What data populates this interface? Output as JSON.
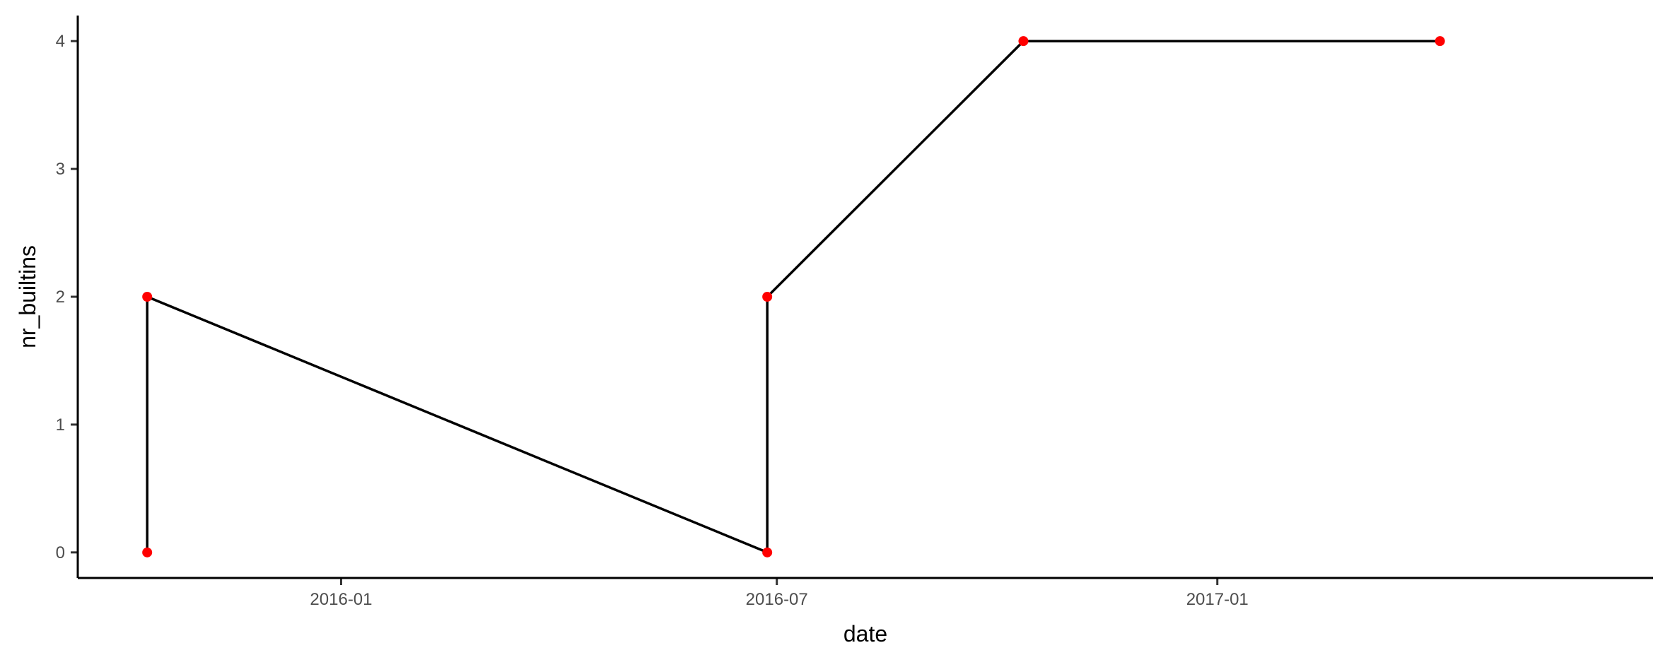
{
  "chart_data": {
    "type": "line",
    "title": "",
    "xlabel": "date",
    "ylabel": "nr_builtins",
    "x_axis": {
      "scale": "date",
      "range": [
        "2015-09-13",
        "2017-07-02"
      ],
      "ticks": [
        "2016-01-01",
        "2016-07-01",
        "2017-01-01"
      ],
      "tick_labels": [
        "2016-01",
        "2016-07",
        "2017-01"
      ]
    },
    "y_axis": {
      "range": [
        -0.2,
        4.2
      ],
      "ticks": [
        0,
        1,
        2,
        3,
        4
      ],
      "tick_labels": [
        "0",
        "1",
        "2",
        "3",
        "4"
      ]
    },
    "grid": false,
    "legend": "none",
    "series": [
      {
        "points": [
          {
            "x": "2015-10-12",
            "y": 0
          },
          {
            "x": "2015-10-12",
            "y": 2
          },
          {
            "x": "2016-06-27",
            "y": 0
          },
          {
            "x": "2016-06-27",
            "y": 2
          },
          {
            "x": "2016-10-12",
            "y": 4
          },
          {
            "x": "2017-04-04",
            "y": 4
          }
        ],
        "line_color": "#000000",
        "point_color": "#ff0000"
      }
    ]
  }
}
